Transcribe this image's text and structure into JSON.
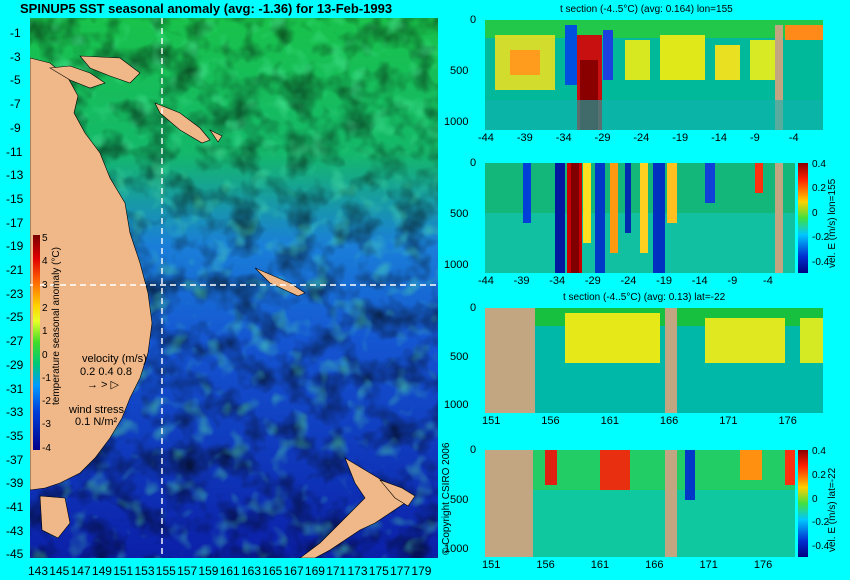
{
  "map": {
    "title": "SPINUP5 SST seasonal anomaly (avg: -1.36) for 13-Feb-1993",
    "colorbar_label": "temperature seasonal anomaly (°C)",
    "colorbar_ticks": [
      "5",
      "4",
      "3",
      "2",
      "1",
      "0",
      "-1",
      "-2",
      "-3",
      "-4"
    ],
    "lat_ticks": [
      "-1",
      "-3",
      "-5",
      "-7",
      "-9",
      "-11",
      "-13",
      "-15",
      "-17",
      "-19",
      "-21",
      "-23",
      "-25",
      "-27",
      "-29",
      "-31",
      "-33",
      "-35",
      "-37",
      "-39",
      "-41",
      "-43",
      "-45"
    ],
    "lon_ticks": [
      "143",
      "145",
      "147",
      "149",
      "151",
      "153",
      "155",
      "157",
      "159",
      "161",
      "163",
      "165",
      "167",
      "169",
      "171",
      "173",
      "175",
      "177",
      "179"
    ],
    "legend_velocity": "velocity (m/s)",
    "legend_velocity_values": "0.2 0.4 0.8",
    "legend_wind": "wind stress",
    "legend_wind_value": "0.1 N/m²",
    "copyright": "© Copyright CSIRO 2006"
  },
  "panels": {
    "p1": {
      "title": "t section (-4..5°C) (avg: 0.164) lon=155",
      "x_ticks": [
        "-44",
        "-39",
        "-34",
        "-29",
        "-24",
        "-19",
        "-14",
        "-9",
        "-4"
      ],
      "y_ticks": [
        "0",
        "500",
        "1000"
      ]
    },
    "p2": {
      "x_ticks": [
        "-44",
        "-39",
        "-34",
        "-29",
        "-24",
        "-19",
        "-14",
        "-9",
        "-4"
      ],
      "y_ticks": [
        "0",
        "500",
        "1000"
      ],
      "colorbar_label": "vel. E (m/s) lon=155",
      "colorbar_ticks": [
        "0.4",
        "0.2",
        "0",
        "-0.2",
        "-0.4"
      ]
    },
    "p3": {
      "title": "t section (-4..5°C) (avg: 0.13) lat=-22",
      "x_ticks": [
        "151",
        "156",
        "161",
        "166",
        "171",
        "176"
      ],
      "y_ticks": [
        "0",
        "500",
        "1000"
      ]
    },
    "p4": {
      "x_ticks": [
        "151",
        "156",
        "161",
        "166",
        "171",
        "176"
      ],
      "y_ticks": [
        "0",
        "500",
        "1000"
      ],
      "colorbar_label": "vel. E (m/s) lat=-22",
      "colorbar_ticks": [
        "0.4",
        "0.2",
        "0",
        "-0.2",
        "-0.4"
      ]
    }
  },
  "chart_data": [
    {
      "type": "heatmap",
      "title": "SPINUP5 SST seasonal anomaly (avg: -1.36) for 13-Feb-1993",
      "xlabel": "",
      "ylabel": "",
      "xlim": [
        143,
        180
      ],
      "ylim": [
        -45,
        0
      ],
      "value_range": [
        -4,
        5
      ],
      "colorbar_label": "temperature seasonal anomaly (°C)",
      "section_lines": {
        "lon": 155,
        "lat": -22
      }
    },
    {
      "type": "heatmap",
      "title": "t section (-4..5°C) (avg: 0.164) lon=155",
      "xlim": [
        -46,
        -1
      ],
      "ylim": [
        1050,
        0
      ]
    },
    {
      "type": "heatmap",
      "title": "",
      "xlim": [
        -46,
        -1
      ],
      "ylim": [
        1050,
        0
      ],
      "colorbar_label": "vel. E (m/s) lon=155",
      "value_range": [
        -0.4,
        0.4
      ]
    },
    {
      "type": "heatmap",
      "title": "t section (-4..5°C) (avg: 0.13) lat=-22",
      "xlim": [
        149,
        180
      ],
      "ylim": [
        1050,
        0
      ]
    },
    {
      "type": "heatmap",
      "title": "",
      "xlim": [
        149,
        180
      ],
      "ylim": [
        1050,
        0
      ],
      "colorbar_label": "vel. E (m/s) lat=-22",
      "value_range": [
        -0.4,
        0.4
      ]
    }
  ]
}
